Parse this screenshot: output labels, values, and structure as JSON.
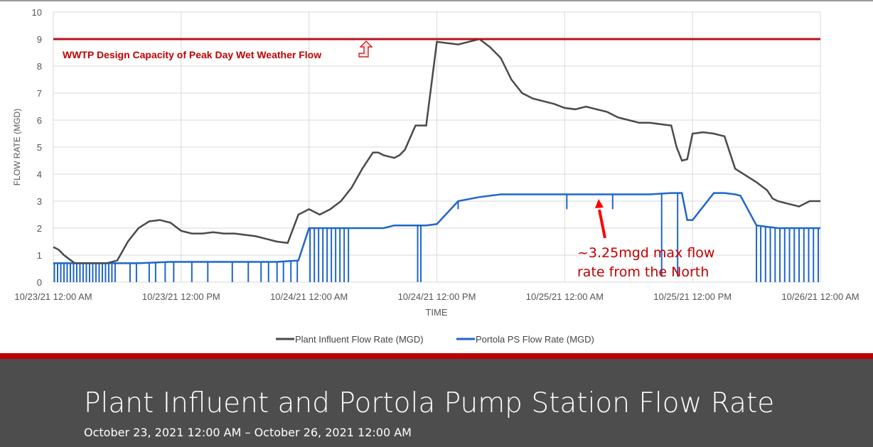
{
  "colors": {
    "plant_line": "#4a4a4a",
    "portola_line": "#1f66c9",
    "capacity_line": "#b0151b",
    "annotation_text": "#c00000",
    "grid": "#d9d9d9",
    "footer_bg": "#4d4d4d",
    "footer_band": "#c00000"
  },
  "chart_data": {
    "type": "line",
    "xlabel": "TIME",
    "ylabel": "FLOW RATE (MGD)",
    "xlim_hours": [
      0,
      72
    ],
    "ylim": [
      0,
      10
    ],
    "y_ticks": [
      "0",
      "1",
      "2",
      "3",
      "4",
      "5",
      "6",
      "7",
      "8",
      "9",
      "10"
    ],
    "x_ticks": [
      "10/23/21 12:00 AM",
      "10/23/21 12:00 PM",
      "10/24/21 12:00 AM",
      "10/24/21 12:00 PM",
      "10/25/21 12:00 AM",
      "10/25/21 12:00 PM",
      "10/26/21 12:00 AM"
    ],
    "grid": "vertical-and-horizontal",
    "legend_position": "bottom",
    "reference_line": {
      "y": 9,
      "label": "WWTP Design Capacity of Peak Day Wet Weather Flow"
    },
    "annotation": {
      "line1": "~3.25mgd max flow",
      "line2": "rate from the North",
      "x_hour": 37.5,
      "y": 3.2
    },
    "series": [
      {
        "name": "Plant Influent Flow Rate (MGD)",
        "x": [
          0,
          0.5,
          1,
          2,
          3,
          4,
          5,
          6,
          7,
          8,
          9,
          10,
          11,
          12,
          13,
          14,
          15,
          16,
          17,
          18,
          19,
          20,
          21,
          22,
          23,
          24,
          25,
          26,
          27,
          28,
          29,
          30,
          30.5,
          31,
          32,
          32.5,
          33,
          34,
          35,
          36,
          37,
          38,
          39,
          40,
          41,
          42,
          43,
          44,
          45,
          46,
          47,
          48,
          49,
          50,
          51,
          52,
          53,
          54,
          55,
          56,
          57,
          58,
          58.5,
          59,
          59.5,
          60,
          61,
          62,
          62.5,
          63,
          64,
          65,
          66,
          67,
          67.5,
          68,
          69,
          70,
          71,
          72
        ],
        "y": [
          1.3,
          1.2,
          1.0,
          0.7,
          0.7,
          0.7,
          0.7,
          0.8,
          1.5,
          2.0,
          2.25,
          2.3,
          2.2,
          1.9,
          1.8,
          1.8,
          1.85,
          1.8,
          1.8,
          1.75,
          1.7,
          1.6,
          1.5,
          1.45,
          2.5,
          2.7,
          2.5,
          2.7,
          3.0,
          3.5,
          4.2,
          4.8,
          4.8,
          4.7,
          4.6,
          4.7,
          4.9,
          5.8,
          5.8,
          8.9,
          8.85,
          8.8,
          8.9,
          9.0,
          8.7,
          8.3,
          7.5,
          7.0,
          6.8,
          6.7,
          6.6,
          6.45,
          6.4,
          6.5,
          6.4,
          6.3,
          6.1,
          6.0,
          5.9,
          5.9,
          5.85,
          5.8,
          5.0,
          4.5,
          4.55,
          5.5,
          5.55,
          5.5,
          5.45,
          5.4,
          4.2,
          3.95,
          3.7,
          3.4,
          3.1,
          3.0,
          2.9,
          2.8,
          3.0,
          3.0
        ]
      },
      {
        "name": "Portola PS Flow Rate (MGD)",
        "x": [
          0,
          6,
          8,
          11,
          16,
          21,
          23,
          24,
          25,
          26,
          28,
          30,
          31,
          32,
          33,
          34,
          35,
          36,
          38,
          40,
          42,
          44,
          46,
          48,
          50,
          52,
          54,
          56,
          58,
          59,
          59.5,
          60,
          62,
          63,
          64,
          64.5,
          66,
          68,
          70,
          72
        ],
        "y": [
          0.7,
          0.7,
          0.7,
          0.75,
          0.75,
          0.75,
          0.8,
          2.0,
          2.0,
          2.0,
          2.0,
          2.0,
          2.0,
          2.1,
          2.1,
          2.1,
          2.1,
          2.15,
          3.0,
          3.15,
          3.25,
          3.25,
          3.25,
          3.25,
          3.25,
          3.25,
          3.25,
          3.25,
          3.3,
          3.3,
          2.3,
          2.3,
          3.3,
          3.3,
          3.25,
          3.2,
          2.1,
          2.0,
          2.0,
          2.0
        ]
      }
    ]
  },
  "footer": {
    "title": "Plant Influent and Portola Pump Station Flow Rate",
    "subtitle": "October 23, 2021 12:00 AM – October 26, 2021 12:00 AM"
  }
}
